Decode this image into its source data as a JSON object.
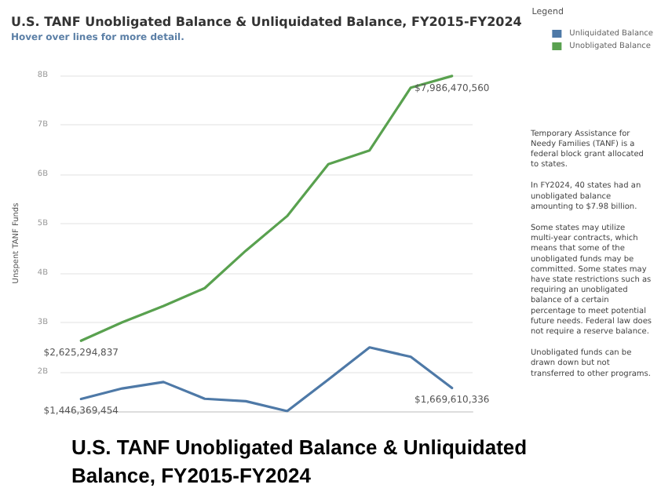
{
  "chart_data": {
    "type": "line",
    "title": "U.S. TANF Unobligated Balance & Unliquidated Balance, FY2015-FY2024",
    "subtitle": "Hover over lines for more detail.",
    "ylabel": "Unspent TANF Funds",
    "legend_title": "Legend",
    "categories": [
      null,
      null,
      null,
      null,
      null,
      null,
      null,
      null,
      null,
      null
    ],
    "series": [
      {
        "name": "Unliquidated Balance",
        "color": "#4e79a7",
        "values": [
          1446369454,
          1660000000,
          1790000000,
          1450000000,
          1400000000,
          1200000000,
          1840000000,
          2490000000,
          2300000000,
          1669610336
        ],
        "value_labels": [
          "$1,446,369,454",
          null,
          null,
          null,
          null,
          null,
          null,
          null,
          null,
          "$1,669,610,336"
        ]
      },
      {
        "name": "Unobligated Balance",
        "color": "#59a14f",
        "values": [
          2625294837,
          3000000000,
          3330000000,
          3690000000,
          4450000000,
          5150000000,
          6200000000,
          6480000000,
          7750000000,
          7986470560
        ],
        "value_labels": [
          "$2,625,294,837",
          null,
          null,
          null,
          null,
          null,
          null,
          null,
          null,
          "$7,986,470,560"
        ]
      }
    ],
    "ylim": [
      1200000000,
      8000000000
    ],
    "yticks": [
      {
        "value": 2000000000,
        "label": "2B"
      },
      {
        "value": 3000000000,
        "label": "3B"
      },
      {
        "value": 4000000000,
        "label": "4B"
      },
      {
        "value": 5000000000,
        "label": "5B"
      },
      {
        "value": 6000000000,
        "label": "6B"
      },
      {
        "value": 7000000000,
        "label": "7B"
      },
      {
        "value": 8000000000,
        "label": "8B"
      }
    ],
    "grid": "y",
    "legend": "top right",
    "marker": "none",
    "line_style": "solid",
    "annotations": [
      "Temporary Assistance for Needy Families (TANF) is a federal block grant allocated to states.",
      "In FY2024, 40 states had an unobligated balance amounting to $7.98 billion.",
      "Some states may utilize multi-year contracts, which means that some of the unobligated funds may be committed. Some states may have state restrictions such as requiring an unobligated balance of a certain percentage to meet potential future needs. Federal law does not require a reserve balance.",
      "Unobligated funds can be drawn down but not transferred to other programs.",
      "U.S. TANF Unobligated Balance & Unliquidated Balance, FY2015-FY2024"
    ]
  }
}
